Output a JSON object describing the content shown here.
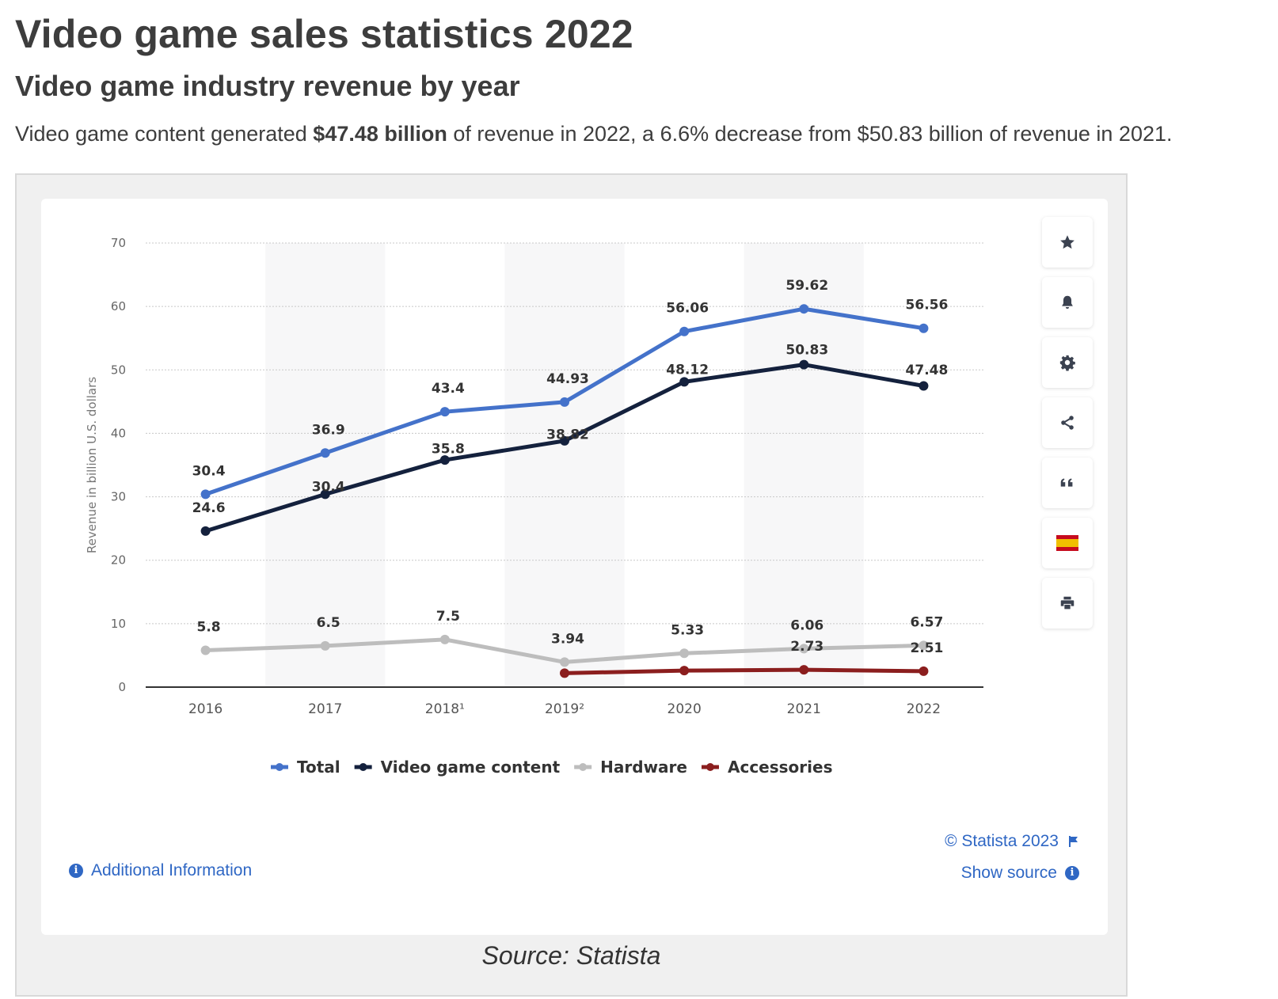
{
  "page": {
    "title": "Video game sales statistics 2022",
    "subtitle": "Video game industry revenue by year",
    "lead_before": "Video game content generated ",
    "lead_bold": "$47.48 billion",
    "lead_after": " of revenue in 2022, a 6.6% decrease from $50.83 billion of revenue in 2021.",
    "caption": "Source: Statista"
  },
  "widget": {
    "copyright": "© Statista 2023",
    "show_source": "Show source",
    "additional_info": "Additional Information",
    "tools": [
      "star-icon",
      "bell-icon",
      "gear-icon",
      "share-icon",
      "quote-icon",
      "spain-flag-icon",
      "print-icon"
    ]
  },
  "chart_data": {
    "type": "line",
    "title": "",
    "xlabel": "",
    "ylabel": "Revenue in billion U.S. dollars",
    "categories": [
      "2016",
      "2017",
      "2018¹",
      "2019²",
      "2020",
      "2021",
      "2022"
    ],
    "ylim": [
      0,
      70
    ],
    "yticks": [
      0,
      10,
      20,
      30,
      40,
      50,
      60,
      70
    ],
    "grid": true,
    "legend": "bottom",
    "series": [
      {
        "name": "Total",
        "color": "#4472ca",
        "values": [
          30.4,
          36.9,
          43.4,
          44.93,
          56.06,
          59.62,
          56.56
        ],
        "labels": [
          "30.4",
          "36.9",
          "43.4",
          "44.93",
          "56.06",
          "59.62",
          "56.56"
        ]
      },
      {
        "name": "Video game content",
        "color": "#14213d",
        "values": [
          24.6,
          30.4,
          35.8,
          38.82,
          48.12,
          50.83,
          47.48
        ],
        "labels": [
          "24.6",
          "30.4",
          "35.8",
          "38.82",
          "48.12",
          "50.83",
          "47.48"
        ]
      },
      {
        "name": "Hardware",
        "color": "#bdbdbd",
        "values": [
          5.8,
          6.5,
          7.5,
          3.94,
          5.33,
          6.06,
          6.57
        ],
        "labels": [
          "5.8",
          "6.5",
          "7.5",
          "3.94",
          "5.33",
          "6.06",
          "6.57"
        ]
      },
      {
        "name": "Accessories",
        "color": "#8b1e1e",
        "values": [
          null,
          null,
          null,
          2.2,
          2.6,
          2.73,
          2.51
        ],
        "labels": [
          "",
          "",
          "",
          "",
          "",
          "2.73",
          "2.51"
        ]
      }
    ]
  }
}
